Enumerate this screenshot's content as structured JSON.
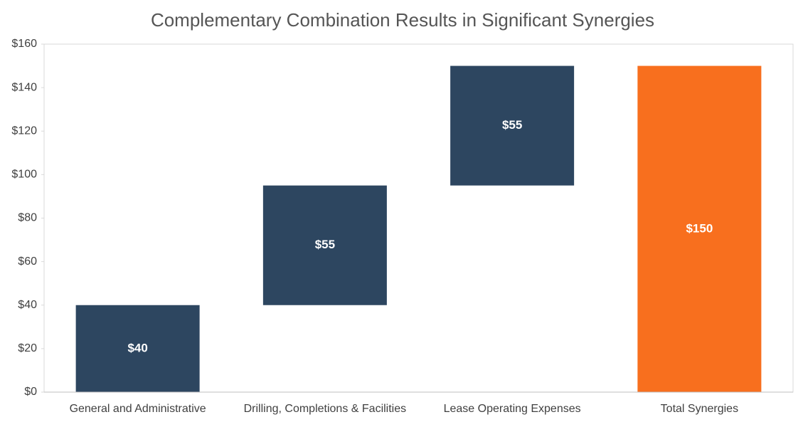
{
  "chart_data": {
    "type": "waterfall",
    "title": "Complementary Combination Results in Significant Synergies",
    "categories": [
      "General and Administrative",
      "Drilling, Completions & Facilities",
      "Lease Operating Expenses",
      "Total Synergies"
    ],
    "values": [
      40,
      55,
      55,
      150
    ],
    "value_labels": [
      "$40",
      "$55",
      "$55",
      "$150"
    ],
    "measures": [
      "relative",
      "relative",
      "relative",
      "total"
    ],
    "colors": [
      "#2d4660",
      "#2d4660",
      "#2d4660",
      "#f86f1e"
    ],
    "ylim": [
      0,
      160
    ],
    "yticks": [
      {
        "value": 0,
        "label": "$0"
      },
      {
        "value": 20,
        "label": "$20"
      },
      {
        "value": 40,
        "label": "$40"
      },
      {
        "value": 60,
        "label": "$60"
      },
      {
        "value": 80,
        "label": "$80"
      },
      {
        "value": 100,
        "label": "$100"
      },
      {
        "value": 120,
        "label": "$120"
      },
      {
        "value": 140,
        "label": "$140"
      },
      {
        "value": 160,
        "label": "$160"
      }
    ],
    "grid": false
  }
}
